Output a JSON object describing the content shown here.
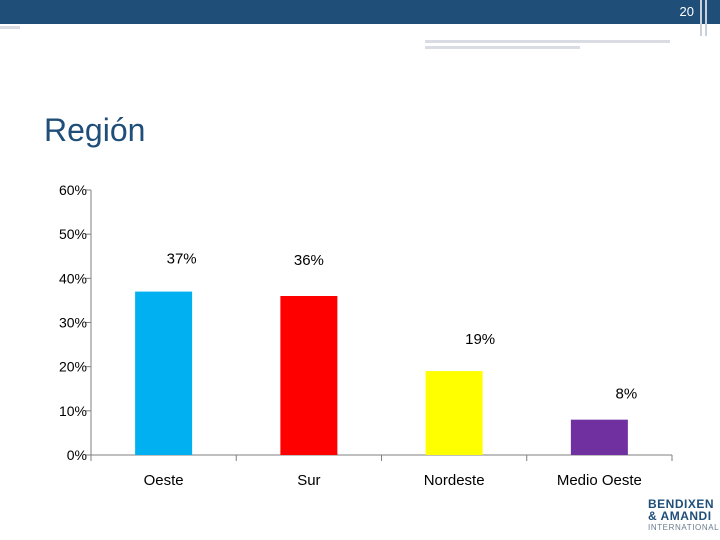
{
  "slide": {
    "number": "20",
    "title": "Región"
  },
  "logo": {
    "line1": "BENDIXEN",
    "line2": "& AMANDI",
    "line3": "INTERNATIONAL"
  },
  "chart_data": {
    "type": "bar",
    "categories": [
      "Oeste",
      "Sur",
      "Nordeste",
      "Medio Oeste"
    ],
    "values": [
      37,
      36,
      19,
      8
    ],
    "data_labels": [
      "37%",
      "36%",
      "19%",
      "8%"
    ],
    "colors": [
      "#00b0f0",
      "#ff0000",
      "#ffff00",
      "#7030a0"
    ],
    "ylim": [
      0,
      60
    ],
    "yticks": [
      0,
      10,
      20,
      30,
      40,
      50,
      60
    ],
    "ytick_labels": [
      "0%",
      "10%",
      "20%",
      "30%",
      "40%",
      "50%",
      "60%"
    ],
    "grid": false,
    "legend": "none"
  }
}
